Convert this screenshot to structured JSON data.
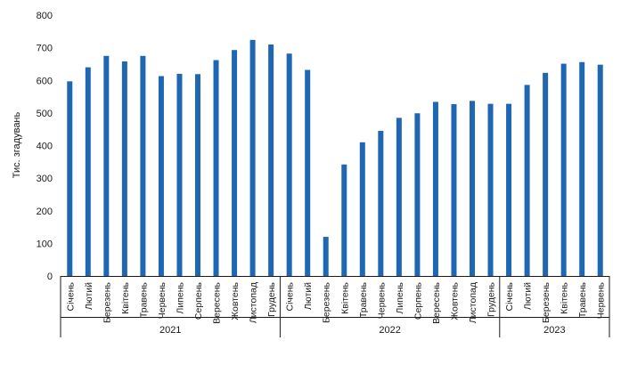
{
  "chart_data": {
    "type": "bar",
    "ylabel": "Тис. згадувань",
    "ylim": [
      0,
      800
    ],
    "yticks": [
      0,
      100,
      200,
      300,
      400,
      500,
      600,
      700,
      800
    ],
    "grid": false,
    "bar_color": "#1f66b3",
    "categories": [
      "Січень",
      "Лютий",
      "Березень",
      "Квітень",
      "Травень",
      "Червень",
      "Липень",
      "Серпень",
      "Вересень",
      "Жовтень",
      "Листопад",
      "Грудень",
      "Січень",
      "Лютий",
      "Березень",
      "Квітень",
      "Травень",
      "Червень",
      "Липень",
      "Серпень",
      "Вересень",
      "Жовтень",
      "Листопад",
      "Грудень",
      "Січень",
      "Лютий",
      "Березень",
      "Квітень",
      "Травень",
      "Червень"
    ],
    "values": [
      597,
      640,
      675,
      658,
      675,
      613,
      620,
      619,
      662,
      693,
      724,
      710,
      682,
      632,
      120,
      342,
      410,
      445,
      485,
      499,
      534,
      527,
      537,
      528,
      528,
      586,
      623,
      651,
      656,
      648
    ],
    "groups": [
      {
        "label": "2021",
        "count": 12
      },
      {
        "label": "2022",
        "count": 12
      },
      {
        "label": "2023",
        "count": 6
      }
    ]
  }
}
